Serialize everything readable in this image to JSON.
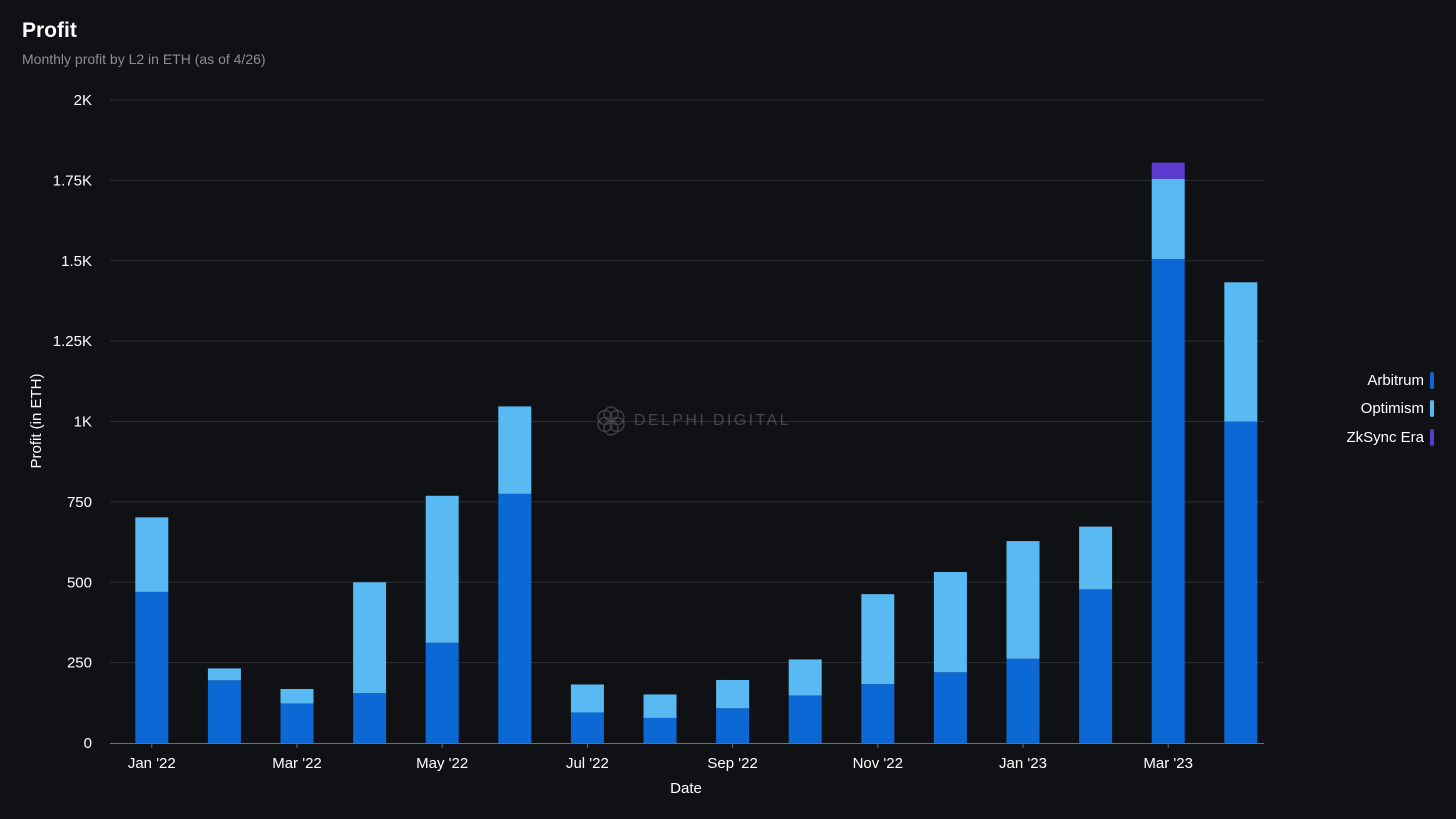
{
  "header": {
    "title": "Profit",
    "subtitle": "Monthly profit by L2 in ETH (as of 4/26)"
  },
  "watermark": {
    "text": "DELPHI DIGITAL"
  },
  "colors": {
    "background": "#101114",
    "grid": "#2c2e33",
    "axis": "#6b6e74",
    "Arbitrum": "#0b68d4",
    "Optimism": "#58b9f3",
    "ZkSync Era": "#5b3ad1"
  },
  "chart_data": {
    "type": "bar",
    "stacked": true,
    "xlabel": "Date",
    "ylabel": "Profit (in ETH)",
    "ylim": [
      0,
      2000
    ],
    "yticks": [
      0,
      250,
      500,
      750,
      1000,
      1250,
      1500,
      1750,
      2000
    ],
    "ytick_labels": [
      "0",
      "250",
      "500",
      "750",
      "1K",
      "1.25K",
      "1.5K",
      "1.75K",
      "2K"
    ],
    "categories": [
      "Jan '22",
      "Feb '22",
      "Mar '22",
      "Apr '22",
      "May '22",
      "Jun '22",
      "Jul '22",
      "Aug '22",
      "Sep '22",
      "Oct '22",
      "Nov '22",
      "Dec '22",
      "Jan '23",
      "Feb '23",
      "Mar '23",
      "Apr '23"
    ],
    "xtick_labels": [
      "Jan '22",
      "Mar '22",
      "May '22",
      "Jul '22",
      "Sep '22",
      "Nov '22",
      "Jan '23",
      "Mar '23"
    ],
    "series": [
      {
        "name": "Arbitrum",
        "values": [
          470,
          195,
          123,
          155,
          312,
          775,
          95,
          78,
          108,
          148,
          183,
          220,
          262,
          478,
          1505,
          1000
        ]
      },
      {
        "name": "Optimism",
        "values": [
          232,
          37,
          45,
          345,
          457,
          272,
          87,
          73,
          88,
          112,
          280,
          312,
          366,
          195,
          250,
          433
        ]
      },
      {
        "name": "ZkSync Era",
        "values": [
          0,
          0,
          0,
          0,
          0,
          0,
          0,
          0,
          0,
          0,
          0,
          0,
          0,
          0,
          50,
          0
        ]
      }
    ],
    "legend_position": "right",
    "grid": true
  }
}
